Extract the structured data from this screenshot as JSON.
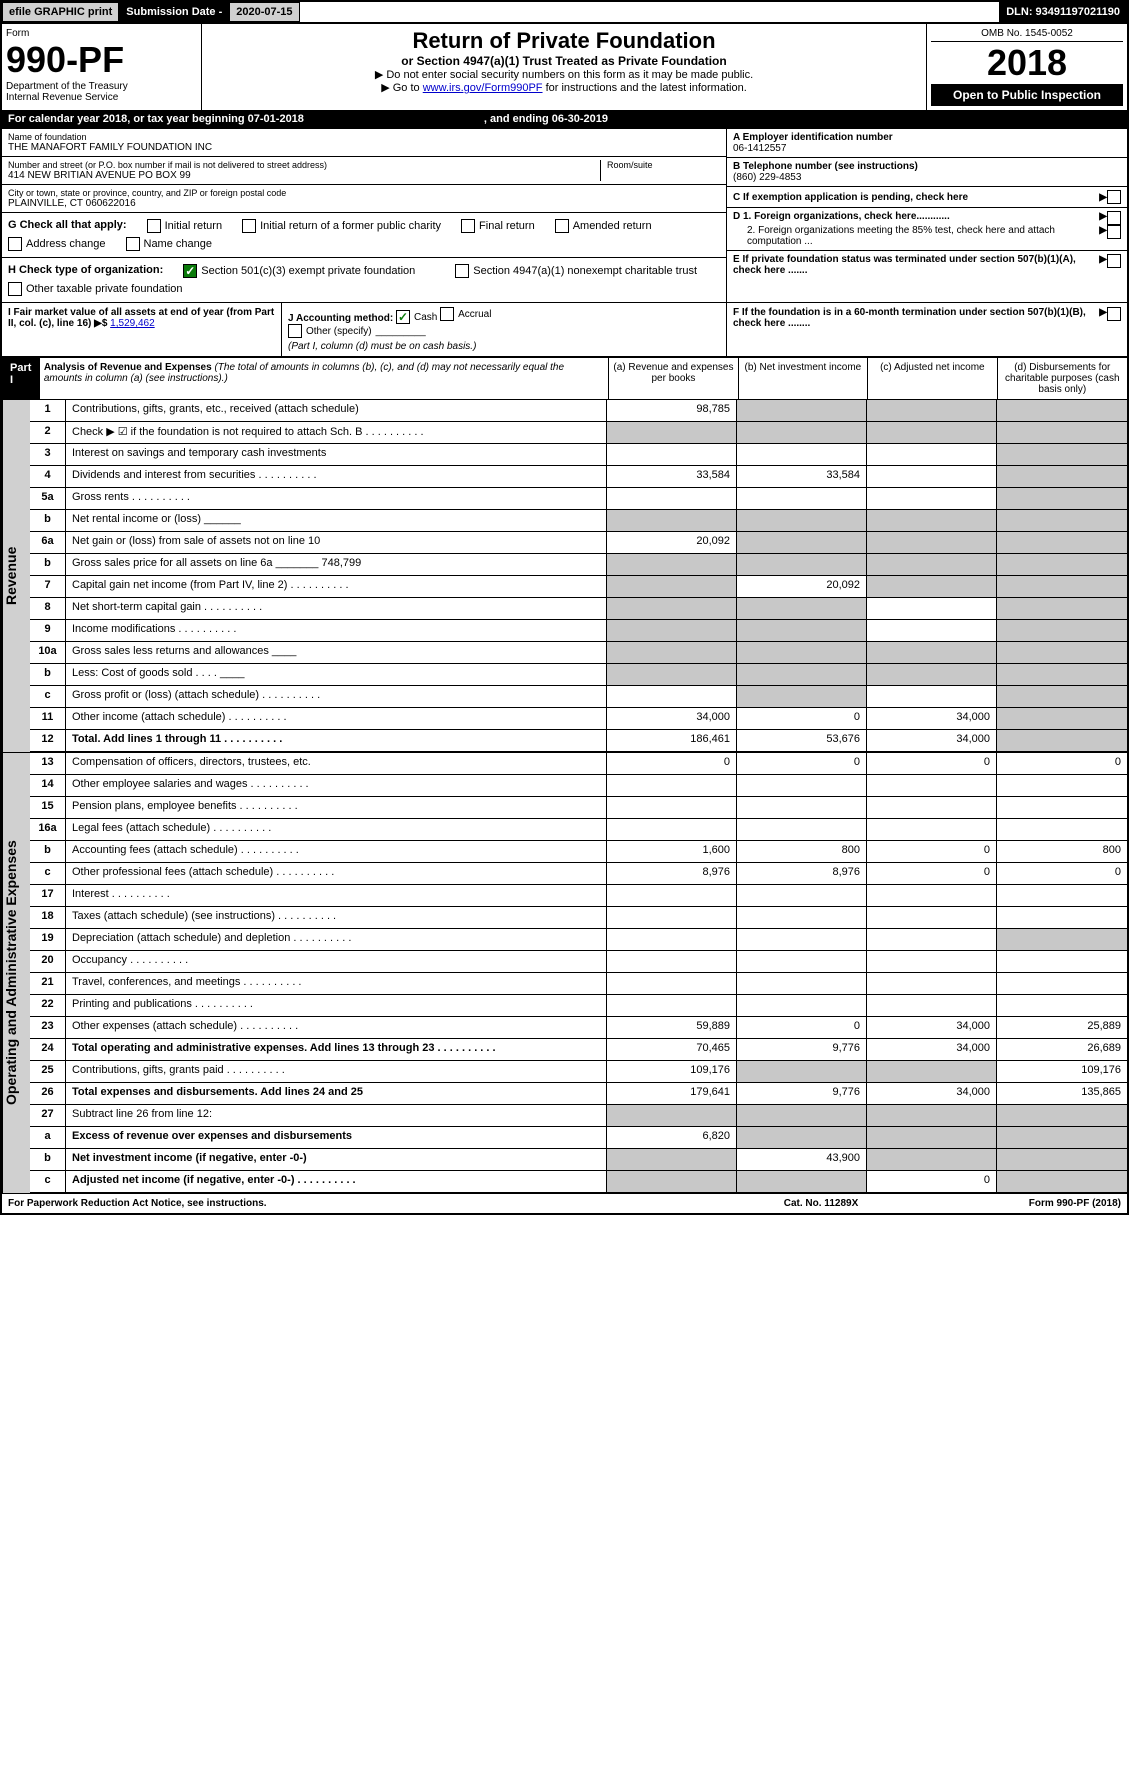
{
  "topbar": {
    "efile": "efile GRAPHIC print",
    "subdate_label": "Submission Date -",
    "subdate_val": "2020-07-15",
    "dln": "DLN: 93491197021190"
  },
  "header": {
    "form_label": "Form",
    "form_num": "990-PF",
    "dept1": "Department of the Treasury",
    "dept2": "Internal Revenue Service",
    "title": "Return of Private Foundation",
    "subtitle": "or Section 4947(a)(1) Trust Treated as Private Foundation",
    "instr1": "▶ Do not enter social security numbers on this form as it may be made public.",
    "instr2_pre": "▶ Go to ",
    "instr2_link": "www.irs.gov/Form990PF",
    "instr2_post": " for instructions and the latest information.",
    "omb": "OMB No. 1545-0052",
    "year": "2018",
    "open_pub": "Open to Public Inspection"
  },
  "calbar": {
    "text": "For calendar year 2018, or tax year beginning 07-01-2018",
    "ending": ", and ending 06-30-2019"
  },
  "info": {
    "name_label": "Name of foundation",
    "name": "THE MANAFORT FAMILY FOUNDATION INC",
    "addr_label": "Number and street (or P.O. box number if mail is not delivered to street address)",
    "addr": "414 NEW BRITIAN AVENUE PO BOX 99",
    "room_label": "Room/suite",
    "city_label": "City or town, state or province, country, and ZIP or foreign postal code",
    "city": "PLAINVILLE, CT  060622016",
    "a_label": "A Employer identification number",
    "a_val": "06-1412557",
    "b_label": "B Telephone number (see instructions)",
    "b_val": "(860) 229-4853",
    "c_label": "C If exemption application is pending, check here",
    "d1": "D 1. Foreign organizations, check here............",
    "d2": "2. Foreign organizations meeting the 85% test, check here and attach computation ...",
    "e": "E  If private foundation status was terminated under section 507(b)(1)(A), check here .......",
    "f": "F  If the foundation is in a 60-month termination under section 507(b)(1)(B), check here ........"
  },
  "g": {
    "label": "G Check all that apply:",
    "opts": [
      "Initial return",
      "Initial return of a former public charity",
      "Final return",
      "Amended return",
      "Address change",
      "Name change"
    ]
  },
  "h": {
    "label": "H Check type of organization:",
    "opt1": "Section 501(c)(3) exempt private foundation",
    "opt2": "Section 4947(a)(1) nonexempt charitable trust",
    "opt3": "Other taxable private foundation"
  },
  "i": {
    "label": "I Fair market value of all assets at end of year (from Part II, col. (c), line 16) ▶$",
    "val": "1,529,462"
  },
  "j": {
    "label": "J Accounting method:",
    "cash": "Cash",
    "accrual": "Accrual",
    "other": "Other (specify)",
    "note": "(Part I, column (d) must be on cash basis.)"
  },
  "part1": {
    "band": "Part I",
    "title": "Analysis of Revenue and Expenses",
    "desc": "(The total of amounts in columns (b), (c), and (d) may not necessarily equal the amounts in column (a) (see instructions).)",
    "cols": [
      "(a)   Revenue and expenses per books",
      "(b)  Net investment income",
      "(c)  Adjusted net income",
      "(d)  Disbursements for charitable purposes (cash basis only)"
    ]
  },
  "sidebars": {
    "revenue": "Revenue",
    "expenses": "Operating and Administrative Expenses"
  },
  "rows_revenue": [
    {
      "no": "1",
      "desc": "Contributions, gifts, grants, etc., received (attach schedule)",
      "a": "98,785",
      "b_shade": true,
      "c_shade": true,
      "d_shade": true
    },
    {
      "no": "2",
      "desc": "Check ▶ ☑ if the foundation is not required to attach Sch. B",
      "a_shade": true,
      "b_shade": true,
      "c_shade": true,
      "d_shade": true,
      "dots": true
    },
    {
      "no": "3",
      "desc": "Interest on savings and temporary cash investments",
      "a": "",
      "b": "",
      "c": "",
      "d_shade": true
    },
    {
      "no": "4",
      "desc": "Dividends and interest from securities",
      "a": "33,584",
      "b": "33,584",
      "c": "",
      "d_shade": true,
      "dots": true
    },
    {
      "no": "5a",
      "desc": "Gross rents",
      "a": "",
      "b": "",
      "c": "",
      "d_shade": true,
      "dots": true
    },
    {
      "no": "b",
      "desc": "Net rental income or (loss) ______",
      "a_shade": true,
      "b_shade": true,
      "c_shade": true,
      "d_shade": true
    },
    {
      "no": "6a",
      "desc": "Net gain or (loss) from sale of assets not on line 10",
      "a": "20,092",
      "b_shade": true,
      "c_shade": true,
      "d_shade": true
    },
    {
      "no": "b",
      "desc": "Gross sales price for all assets on line 6a _______ 748,799",
      "a_shade": true,
      "b_shade": true,
      "c_shade": true,
      "d_shade": true
    },
    {
      "no": "7",
      "desc": "Capital gain net income (from Part IV, line 2)",
      "a_shade": true,
      "b": "20,092",
      "c_shade": true,
      "d_shade": true,
      "dots": true
    },
    {
      "no": "8",
      "desc": "Net short-term capital gain",
      "a_shade": true,
      "b_shade": true,
      "c": "",
      "d_shade": true,
      "dots": true
    },
    {
      "no": "9",
      "desc": "Income modifications",
      "a_shade": true,
      "b_shade": true,
      "c": "",
      "d_shade": true,
      "dots": true
    },
    {
      "no": "10a",
      "desc": "Gross sales less returns and allowances  ____",
      "a_shade": true,
      "b_shade": true,
      "c_shade": true,
      "d_shade": true
    },
    {
      "no": "b",
      "desc": "Less: Cost of goods sold   . . . .  ____",
      "a_shade": true,
      "b_shade": true,
      "c_shade": true,
      "d_shade": true
    },
    {
      "no": "c",
      "desc": "Gross profit or (loss) (attach schedule)",
      "a": "",
      "b_shade": true,
      "c": "",
      "d_shade": true,
      "dots": true
    },
    {
      "no": "11",
      "desc": "Other income (attach schedule)",
      "a": "34,000",
      "b": "0",
      "c": "34,000",
      "d_shade": true,
      "dots": true
    },
    {
      "no": "12",
      "desc": "Total. Add lines 1 through 11",
      "a": "186,461",
      "b": "53,676",
      "c": "34,000",
      "d_shade": true,
      "bold": true,
      "dots": true
    }
  ],
  "rows_expenses": [
    {
      "no": "13",
      "desc": "Compensation of officers, directors, trustees, etc.",
      "a": "0",
      "b": "0",
      "c": "0",
      "d": "0"
    },
    {
      "no": "14",
      "desc": "Other employee salaries and wages",
      "a": "",
      "b": "",
      "c": "",
      "d": "",
      "dots": true
    },
    {
      "no": "15",
      "desc": "Pension plans, employee benefits",
      "a": "",
      "b": "",
      "c": "",
      "d": "",
      "dots": true
    },
    {
      "no": "16a",
      "desc": "Legal fees (attach schedule)",
      "a": "",
      "b": "",
      "c": "",
      "d": "",
      "dots": true
    },
    {
      "no": "b",
      "desc": "Accounting fees (attach schedule)",
      "a": "1,600",
      "b": "800",
      "c": "0",
      "d": "800",
      "dots": true
    },
    {
      "no": "c",
      "desc": "Other professional fees (attach schedule)",
      "a": "8,976",
      "b": "8,976",
      "c": "0",
      "d": "0",
      "dots": true
    },
    {
      "no": "17",
      "desc": "Interest",
      "a": "",
      "b": "",
      "c": "",
      "d": "",
      "dots": true
    },
    {
      "no": "18",
      "desc": "Taxes (attach schedule) (see instructions)",
      "a": "",
      "b": "",
      "c": "",
      "d": "",
      "dots": true
    },
    {
      "no": "19",
      "desc": "Depreciation (attach schedule) and depletion",
      "a": "",
      "b": "",
      "c": "",
      "d_shade": true,
      "dots": true
    },
    {
      "no": "20",
      "desc": "Occupancy",
      "a": "",
      "b": "",
      "c": "",
      "d": "",
      "dots": true
    },
    {
      "no": "21",
      "desc": "Travel, conferences, and meetings",
      "a": "",
      "b": "",
      "c": "",
      "d": "",
      "dots": true
    },
    {
      "no": "22",
      "desc": "Printing and publications",
      "a": "",
      "b": "",
      "c": "",
      "d": "",
      "dots": true
    },
    {
      "no": "23",
      "desc": "Other expenses (attach schedule)",
      "a": "59,889",
      "b": "0",
      "c": "34,000",
      "d": "25,889",
      "dots": true
    },
    {
      "no": "24",
      "desc": "Total operating and administrative expenses. Add lines 13 through 23",
      "a": "70,465",
      "b": "9,776",
      "c": "34,000",
      "d": "26,689",
      "bold": true,
      "dots": true
    },
    {
      "no": "25",
      "desc": "Contributions, gifts, grants paid",
      "a": "109,176",
      "b_shade": true,
      "c_shade": true,
      "d": "109,176",
      "dots": true
    },
    {
      "no": "26",
      "desc": "Total expenses and disbursements. Add lines 24 and 25",
      "a": "179,641",
      "b": "9,776",
      "c": "34,000",
      "d": "135,865",
      "bold": true
    },
    {
      "no": "27",
      "desc": "Subtract line 26 from line 12:",
      "a_shade": true,
      "b_shade": true,
      "c_shade": true,
      "d_shade": true
    },
    {
      "no": "a",
      "desc": "Excess of revenue over expenses and disbursements",
      "a": "6,820",
      "b_shade": true,
      "c_shade": true,
      "d_shade": true,
      "bold": true
    },
    {
      "no": "b",
      "desc": "Net investment income (if negative, enter -0-)",
      "a_shade": true,
      "b": "43,900",
      "c_shade": true,
      "d_shade": true,
      "bold": true
    },
    {
      "no": "c",
      "desc": "Adjusted net income (if negative, enter -0-)",
      "a_shade": true,
      "b_shade": true,
      "c": "0",
      "d_shade": true,
      "bold": true,
      "dots": true
    }
  ],
  "footer": {
    "left": "For Paperwork Reduction Act Notice, see instructions.",
    "mid": "Cat. No. 11289X",
    "right": "Form 990-PF (2018)"
  }
}
